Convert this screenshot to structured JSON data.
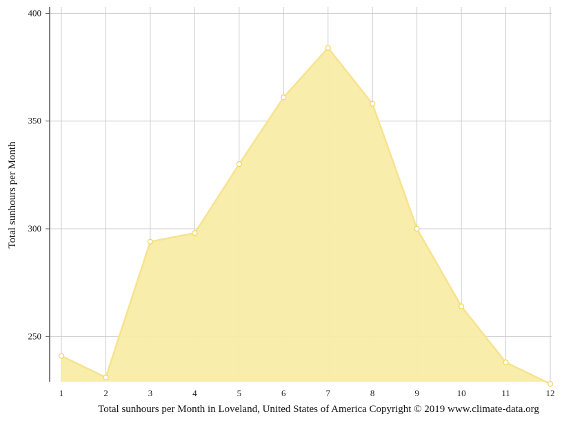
{
  "chart_data": {
    "type": "area",
    "x": [
      1,
      2,
      3,
      4,
      5,
      6,
      7,
      8,
      9,
      10,
      11,
      12
    ],
    "categories": [
      "1",
      "2",
      "3",
      "4",
      "5",
      "6",
      "7",
      "8",
      "9",
      "10",
      "11",
      "12"
    ],
    "series": [
      {
        "values": [
          241,
          231,
          294,
          298,
          330,
          361,
          384,
          358,
          300,
          264,
          238,
          228
        ]
      }
    ],
    "ylabel": "Total sunhours per Month",
    "xlabel": "",
    "ylim": [
      229,
      403
    ],
    "yticks": [
      250,
      300,
      350,
      400
    ],
    "ytick_labels": [
      "250",
      "300",
      "350",
      "400"
    ],
    "grid": true,
    "legend": "none",
    "caption": "Total sunhours per Month in Loveland, United States of America Copyright © 2019 www.climate-data.org",
    "colors": {
      "fill": "#f9eca8",
      "line": "#f7e38e",
      "marker_fill": "#ffffff",
      "marker_stroke": "#f2d65c",
      "grid": "#cccccc",
      "axis": "#555555"
    }
  }
}
